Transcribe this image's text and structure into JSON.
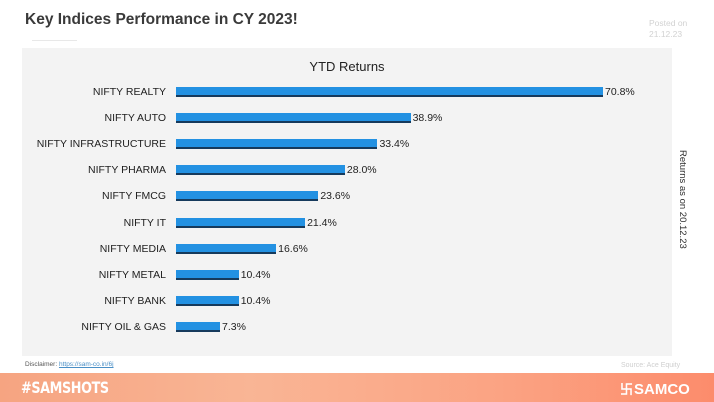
{
  "header": {
    "title": "Key Indices Performance in CY 2023!",
    "posted_label": "Posted on",
    "posted_date": "21.12.23"
  },
  "chart_data": {
    "type": "bar",
    "orientation": "horizontal",
    "title": "YTD Returns",
    "categories": [
      "NIFTY REALTY",
      "NIFTY AUTO",
      "NIFTY INFRASTRUCTURE",
      "NIFTY PHARMA",
      "NIFTY FMCG",
      "NIFTY IT",
      "NIFTY MEDIA",
      "NIFTY METAL",
      "NIFTY BANK",
      "NIFTY OIL & GAS"
    ],
    "values": [
      70.8,
      38.9,
      33.4,
      28.0,
      23.6,
      21.4,
      16.6,
      10.4,
      10.4,
      7.3
    ],
    "labels": [
      "70.8%",
      "38.9%",
      "33.4%",
      "28.0%",
      "23.6%",
      "21.4%",
      "16.6%",
      "10.4%",
      "10.4%",
      "7.3%"
    ],
    "unit": "%",
    "xlabel": "",
    "ylabel": "",
    "grid": false,
    "legend": null,
    "bar_color": "#2391e2",
    "annotation": "Returns as on 20.12.23"
  },
  "footer": {
    "disclaimer_label": "Disclaimer:",
    "disclaimer_link": "https://sam-co.in/6j",
    "source": "Source: Ace Equity",
    "hashtag": "#SAMSHOTS",
    "brand": "SAMCO",
    "brand_icon": "samco-logo-icon"
  }
}
